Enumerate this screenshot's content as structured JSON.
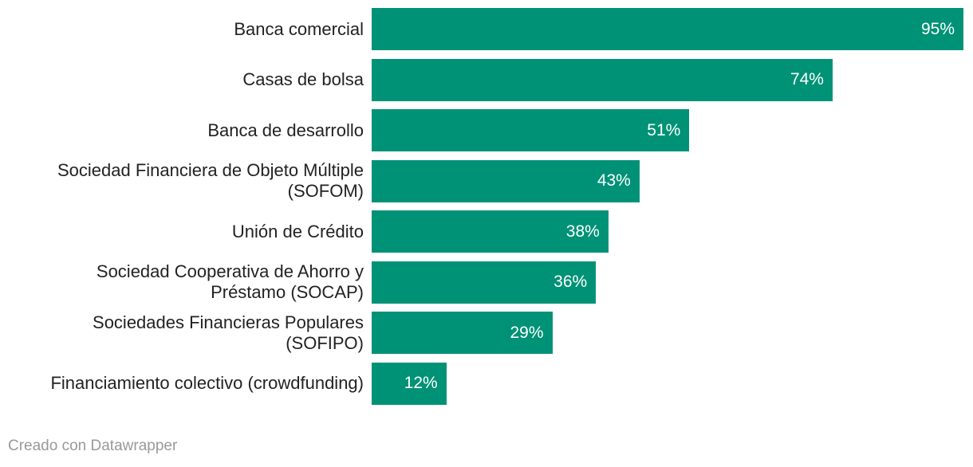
{
  "chart_data": {
    "type": "bar",
    "orientation": "horizontal",
    "title": "",
    "xlabel": "",
    "ylabel": "",
    "xlim": [
      0,
      95
    ],
    "grid": false,
    "legend": "none",
    "value_suffix": "%",
    "categories": [
      [
        "Banca comercial"
      ],
      [
        "Casas de bolsa"
      ],
      [
        "Banca de desarrollo"
      ],
      [
        "Sociedad Financiera de Objeto Múltiple",
        "(SOFOM)"
      ],
      [
        "Unión de Crédito"
      ],
      [
        "Sociedad Cooperativa de Ahorro y",
        "Préstamo (SOCAP)"
      ],
      [
        "Sociedades Financieras Populares",
        "(SOFIPO)"
      ],
      [
        "Financiamiento colectivo (crowdfunding)"
      ]
    ],
    "values": [
      95,
      74,
      51,
      43,
      38,
      36,
      29,
      12
    ],
    "value_labels": [
      "95%",
      "74%",
      "51%",
      "43%",
      "38%",
      "36%",
      "29%",
      "12%"
    ],
    "bar_color": "#009276"
  },
  "footer": {
    "credit": "Creado con Datawrapper"
  }
}
